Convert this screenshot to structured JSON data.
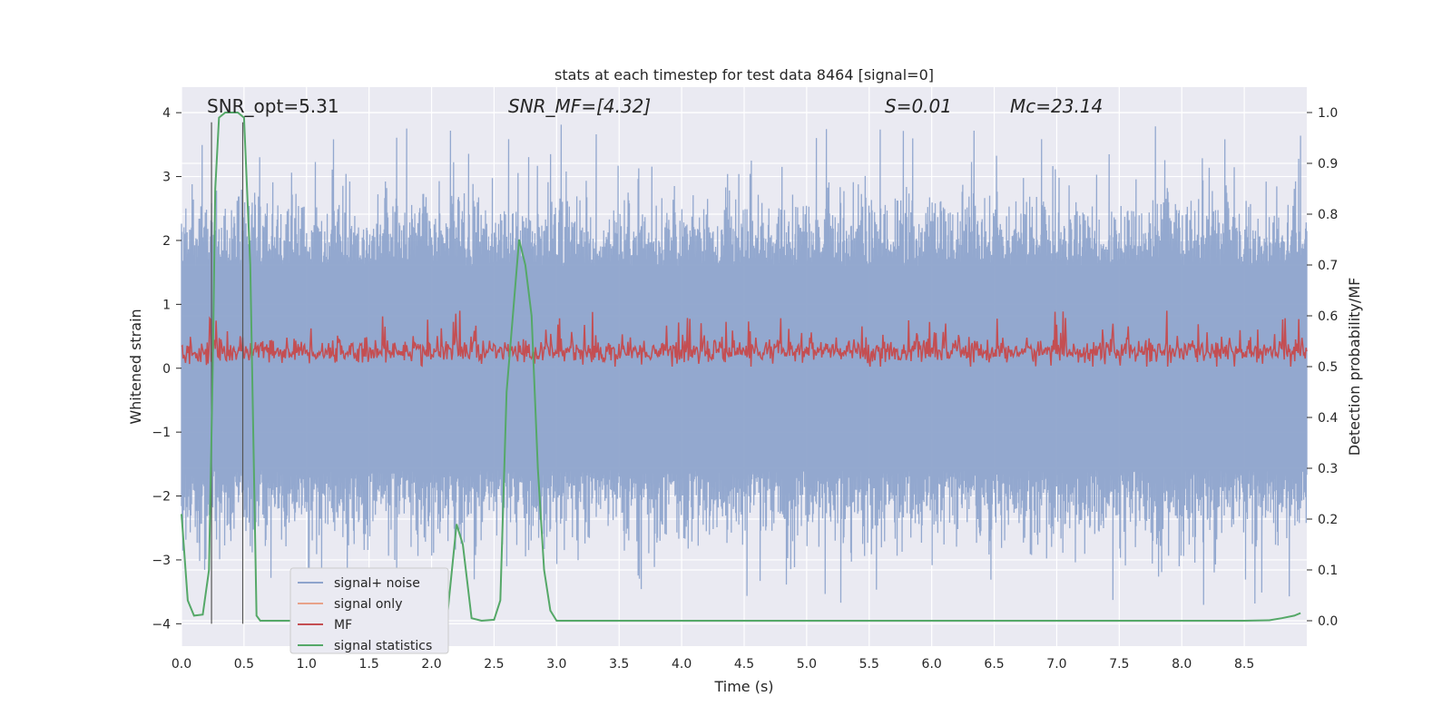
{
  "chart_data": {
    "type": "line",
    "title": "stats at each timestep for test data 8464 [signal=0]",
    "xlabel": "Time (s)",
    "ylabel": "Whitened strain",
    "ylabel_right": "Detection probability/MF",
    "xlim": [
      0.0,
      9.0
    ],
    "ylim": [
      -4.35,
      4.4
    ],
    "ylim_right": [
      -0.05,
      1.05
    ],
    "x_ticks": [
      "0.0",
      "0.5",
      "1.0",
      "1.5",
      "2.0",
      "2.5",
      "3.0",
      "3.5",
      "4.0",
      "4.5",
      "5.0",
      "5.5",
      "6.0",
      "6.5",
      "7.0",
      "7.5",
      "8.0",
      "8.5"
    ],
    "y_ticks": [
      "4",
      "3",
      "2",
      "1",
      "0",
      "−1",
      "−2",
      "−3",
      "−4"
    ],
    "y_ticks_right": [
      "1.0",
      "0.9",
      "0.8",
      "0.7",
      "0.6",
      "0.5",
      "0.4",
      "0.3",
      "0.2",
      "0.1",
      "0.0"
    ],
    "grid": true,
    "legend_position": "lower-left",
    "annotations": {
      "snr_opt": "SNR_opt=5.31",
      "snr_mf": "SNR_MF=[4.32]",
      "s_stat": "S=0.01",
      "mc": "Mc=23.14"
    },
    "series": [
      {
        "name": "signal+ noise",
        "color": "#8ea4cc",
        "axis": "left",
        "description_values": "noise band, |y| mostly < 2, peaks to ~3.8"
      },
      {
        "name": "signal only",
        "color": "#e8a28a",
        "axis": "left",
        "x": [],
        "y": []
      },
      {
        "name": "MF",
        "color": "#c44e52",
        "axis": "right",
        "y_range": [
          0.5,
          0.6
        ]
      },
      {
        "name": "signal statistics",
        "color": "#55a868",
        "axis": "right",
        "x": [
          0.0,
          0.05,
          0.1,
          0.17,
          0.22,
          0.25,
          0.27,
          0.3,
          0.35,
          0.4,
          0.45,
          0.5,
          0.55,
          0.6,
          0.63,
          0.7,
          0.9,
          1.2,
          1.6,
          2.0,
          2.08,
          2.13,
          2.2,
          2.25,
          2.32,
          2.4,
          2.5,
          2.55,
          2.6,
          2.65,
          2.7,
          2.75,
          2.8,
          2.85,
          2.9,
          2.95,
          3.0,
          3.2,
          4.0,
          5.0,
          6.0,
          7.0,
          8.0,
          8.5,
          8.7,
          8.8,
          8.9,
          8.95
        ],
        "y": [
          0.21,
          0.04,
          0.01,
          0.012,
          0.1,
          0.5,
          0.85,
          0.99,
          1.0,
          1.0,
          1.0,
          0.99,
          0.7,
          0.01,
          0.0,
          0.0,
          0.0,
          0.0,
          0.0,
          0.0,
          0.01,
          0.02,
          0.19,
          0.15,
          0.005,
          0.0,
          0.002,
          0.04,
          0.45,
          0.6,
          0.75,
          0.7,
          0.6,
          0.3,
          0.1,
          0.02,
          0.0,
          0.0,
          0.0,
          0.0,
          0.0,
          0.0,
          0.0,
          0.0,
          0.001,
          0.005,
          0.01,
          0.015
        ]
      }
    ],
    "vlines": [
      0.24,
      0.49
    ],
    "legend": [
      "signal+ noise",
      "signal only",
      "MF",
      "signal statistics"
    ]
  }
}
